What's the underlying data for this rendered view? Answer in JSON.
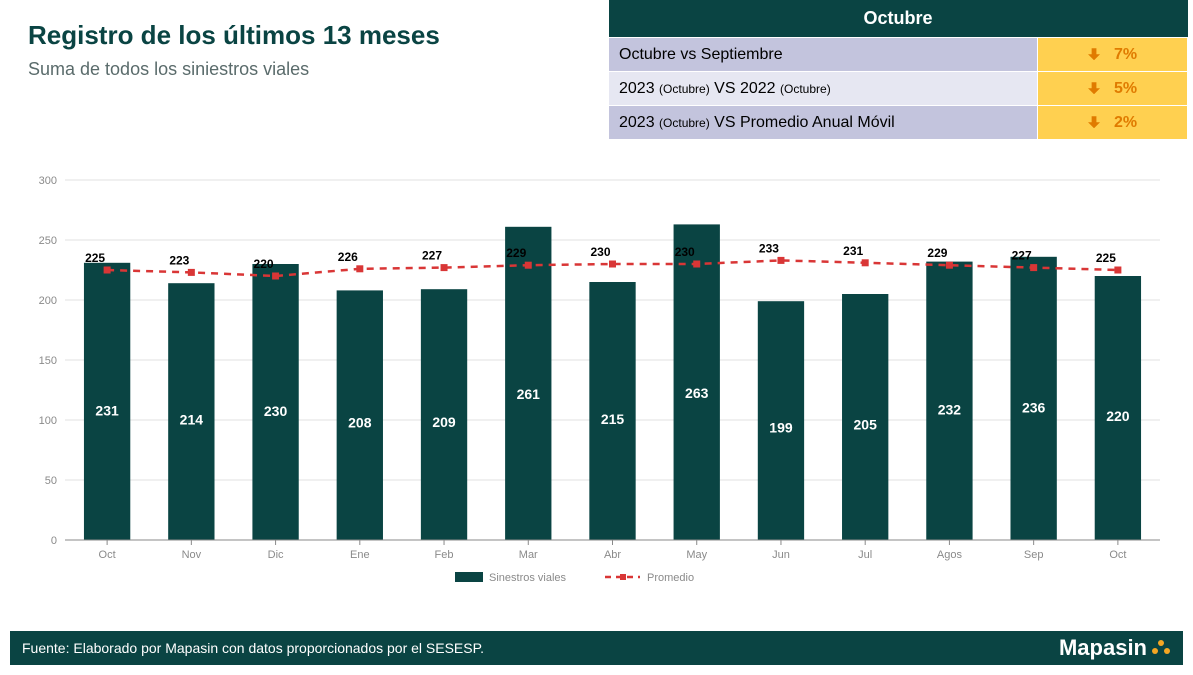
{
  "header": {
    "title": "Registro de los últimos 13 meses",
    "subtitle": "Suma de todos los siniestros viales",
    "title_color": "#0a4443",
    "subtitle_color": "#5a6b6b"
  },
  "comparison": {
    "header": "Octubre",
    "rows": [
      {
        "label_html": "Octubre vs Septiembre",
        "value": "7%",
        "direction": "down"
      },
      {
        "label_html": "2023 <span class='small'>(Octubre)</span> VS 2022 <span class='small'>(Octubre)</span>",
        "value": "5%",
        "direction": "down"
      },
      {
        "label_html": "2023 <span class='small'>(Octubre)</span> VS Promedio Anual Móvil",
        "value": "2%",
        "direction": "down"
      }
    ]
  },
  "chart": {
    "type": "bar_with_line",
    "categories": [
      "Oct",
      "Nov",
      "Dic",
      "Ene",
      "Feb",
      "Mar",
      "Abr",
      "May",
      "Jun",
      "Jul",
      "Agos",
      "Sep",
      "Oct"
    ],
    "bar_values": [
      231,
      214,
      230,
      208,
      209,
      261,
      215,
      263,
      199,
      205,
      232,
      236,
      220
    ],
    "line_values": [
      225,
      223,
      220,
      226,
      227,
      229,
      230,
      230,
      233,
      231,
      229,
      227,
      225
    ],
    "ylim": [
      0,
      300
    ],
    "ytick_step": 50,
    "bar_color": "#0a4443",
    "line_color": "#d93636",
    "grid_color": "#e0e0e0",
    "axis_text_color": "#8a8a8a",
    "bar_label_color": "#ffffff",
    "line_label_color": "#000000",
    "background_color": "#ffffff",
    "legend": {
      "bar_label": "Sinestros viales",
      "line_label": "Promedio"
    },
    "label_fontsize": 11,
    "value_fontsize": 14,
    "line_label_fontsize": 12,
    "bar_width_ratio": 0.55
  },
  "footer": {
    "source": "Fuente: Elaborado por Mapasin con datos proporcionados por el SESESP.",
    "brand": "Mapasin"
  }
}
